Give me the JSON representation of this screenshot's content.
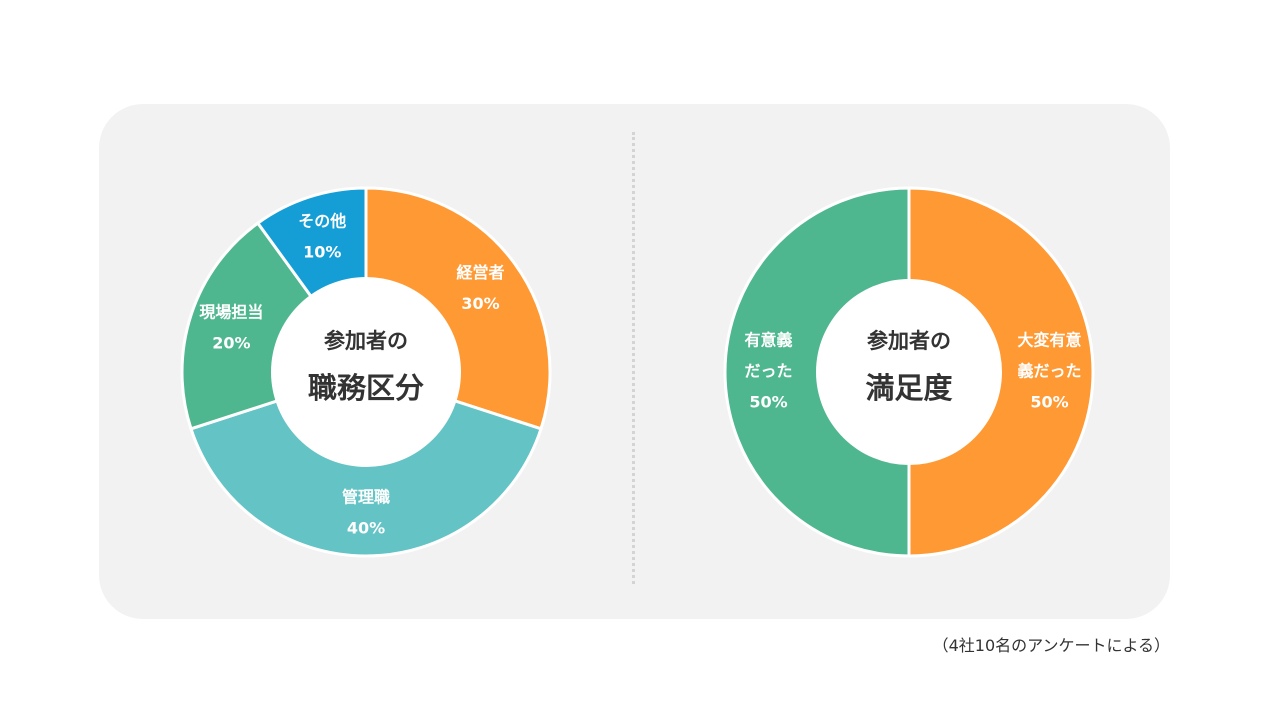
{
  "footnote": "（4社10名のアンケートによる）",
  "chart_data": [
    {
      "type": "pie",
      "variant": "donut",
      "center_line1": "参加者の",
      "center_line2": "職務区分",
      "slices": [
        {
          "label": "経営者",
          "percent_label": "30%",
          "value": 30,
          "color": "#ff9933"
        },
        {
          "label": "管理職",
          "percent_label": "40%",
          "value": 40,
          "color": "#63c3c5"
        },
        {
          "label": "現場担当",
          "percent_label": "20%",
          "value": 20,
          "color": "#4fb78f"
        },
        {
          "label": "その他",
          "percent_label": "10%",
          "value": 10,
          "color": "#159ed6"
        }
      ]
    },
    {
      "type": "pie",
      "variant": "donut",
      "center_line1": "参加者の",
      "center_line2": "満足度",
      "slices": [
        {
          "label": [
            "大変有意",
            "義だった"
          ],
          "percent_label": "50%",
          "value": 50,
          "color": "#ff9933"
        },
        {
          "label": [
            "有意義",
            "だった"
          ],
          "percent_label": "50%",
          "value": 50,
          "color": "#4fb78f"
        }
      ]
    }
  ]
}
